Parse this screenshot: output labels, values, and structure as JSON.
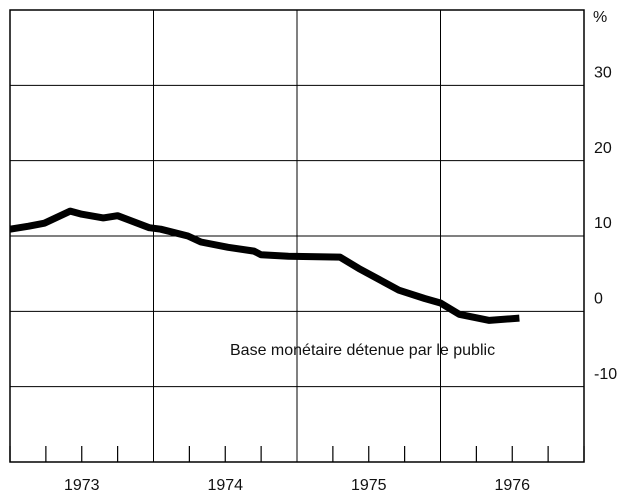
{
  "chart_data": {
    "type": "line",
    "y_unit": "%",
    "annotation": "Base monétaire détenue par le public",
    "x": [
      1973.0,
      1973.13,
      1973.24,
      1973.42,
      1973.5,
      1973.65,
      1973.75,
      1973.97,
      1974.05,
      1974.24,
      1974.33,
      1974.52,
      1974.7,
      1974.75,
      1974.94,
      1975.3,
      1975.43,
      1975.71,
      1975.89,
      1976.0,
      1976.13,
      1976.34,
      1976.55
    ],
    "values": [
      10.9,
      11.3,
      11.7,
      13.3,
      12.9,
      12.4,
      12.7,
      11.1,
      10.9,
      10.0,
      9.2,
      8.5,
      8.0,
      7.5,
      7.3,
      7.2,
      5.7,
      2.8,
      1.7,
      1.1,
      -0.4,
      -1.2,
      -0.9
    ],
    "color": "#000000",
    "xlim": [
      1973,
      1977
    ],
    "xticks": [
      {
        "value": 1973.5,
        "label": "1973"
      },
      {
        "value": 1974.5,
        "label": "1974"
      },
      {
        "value": 1975.5,
        "label": "1975"
      },
      {
        "value": 1976.5,
        "label": "1976"
      }
    ],
    "ylim": [
      -20,
      40
    ],
    "yticks": [
      -10,
      0,
      10,
      20,
      30
    ],
    "grid": true
  }
}
